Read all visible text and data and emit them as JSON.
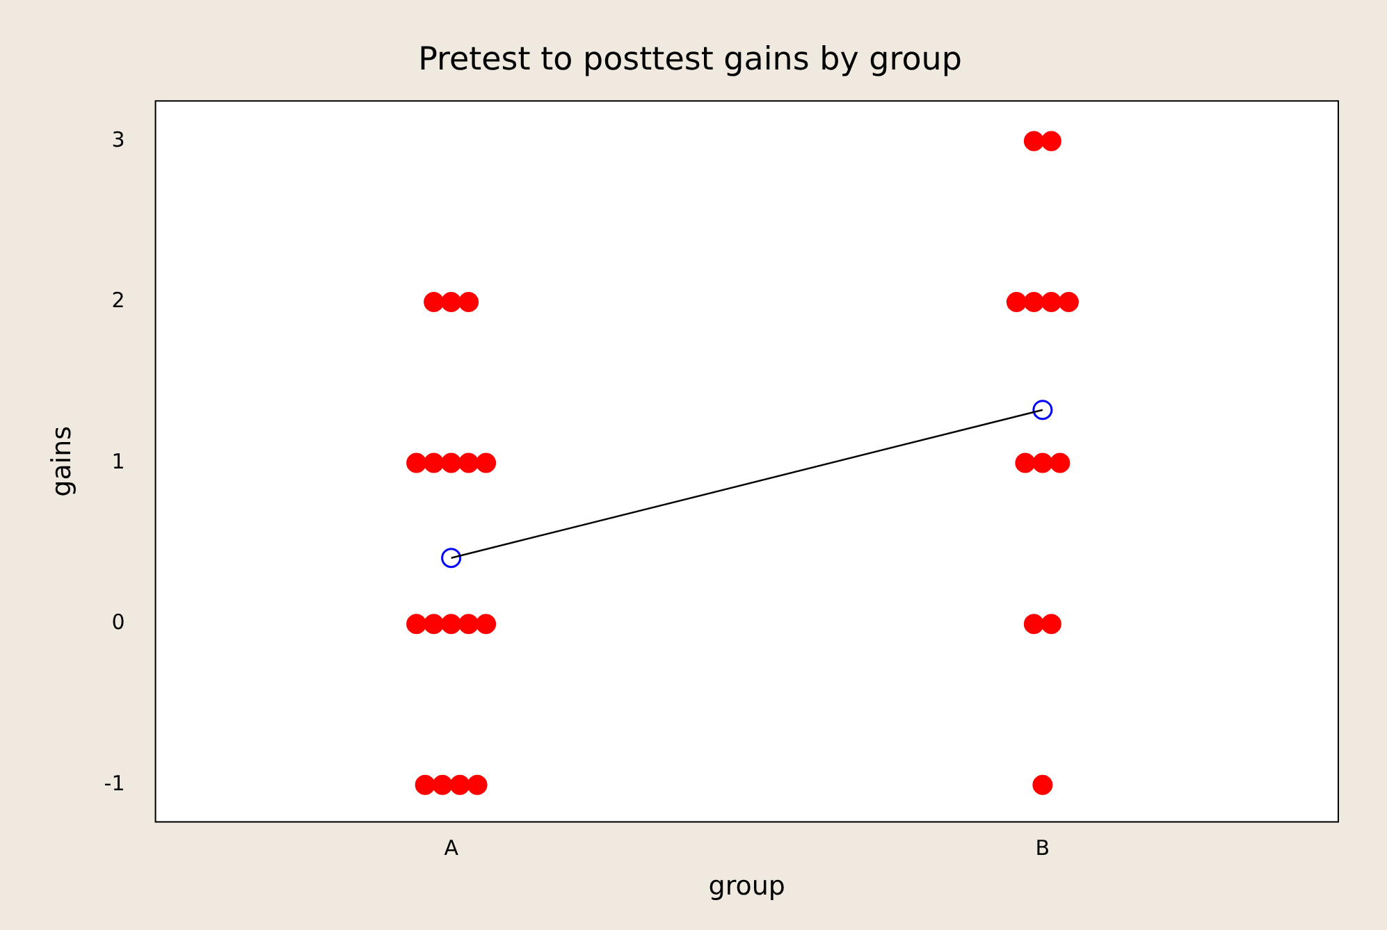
{
  "chart_data": {
    "type": "scatter",
    "title": "Pretest to posttest gains by group",
    "xlabel": "group",
    "ylabel": "gains",
    "categories": [
      "A",
      "B"
    ],
    "ylim": [
      -1.23,
      3.25
    ],
    "yticks": [
      -1,
      0,
      1,
      2,
      3
    ],
    "grid": false,
    "legend": false,
    "marker": "circle",
    "series": [
      {
        "color": "#ff0000",
        "x": [
          "A",
          "A",
          "A",
          "A",
          "A",
          "A",
          "A",
          "A",
          "A",
          "A",
          "A",
          "A",
          "A",
          "A",
          "A",
          "A",
          "A",
          "B",
          "B",
          "B",
          "B",
          "B",
          "B",
          "B",
          "B",
          "B",
          "B",
          "B",
          "B"
        ],
        "values": [
          2,
          2,
          2,
          1,
          1,
          1,
          1,
          1,
          0,
          0,
          0,
          0,
          0,
          -1,
          -1,
          -1,
          -1,
          3,
          3,
          2,
          2,
          2,
          2,
          1,
          1,
          1,
          0,
          0,
          -1
        ]
      },
      {
        "type": "line",
        "color": "#000000",
        "marker": "none",
        "values": [
          0.41,
          1.33
        ]
      },
      {
        "type": "scatter",
        "color": "#0000ff",
        "marker": "circle",
        "values": [
          0.41,
          1.33
        ]
      }
    ]
  }
}
